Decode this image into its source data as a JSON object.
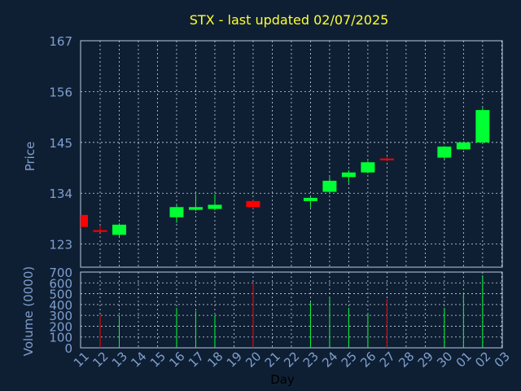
{
  "chart_data": [
    {
      "type": "candlestick",
      "title": "STX - last updated 02/07/2025",
      "ylabel": "Price",
      "ylim": [
        118,
        167
      ],
      "yticks": [
        123,
        134,
        145,
        156,
        167
      ],
      "grid": true,
      "colors": {
        "up": "#00ff33",
        "down": "#ff0000",
        "title": "#ffff33",
        "axis_text": "#7f9fcf"
      },
      "x_labels": [
        "11",
        "12",
        "13",
        "14",
        "15",
        "16",
        "17",
        "18",
        "19",
        "20",
        "21",
        "22",
        "23",
        "24",
        "25",
        "26",
        "27",
        "28",
        "29",
        "30",
        "01",
        "02",
        "03"
      ],
      "candles": [
        {
          "day": "11",
          "open": 129.3,
          "high": 129.3,
          "low": 126.4,
          "close": 126.7
        },
        {
          "day": "12",
          "open": 126.0,
          "high": 127.0,
          "low": 125.5,
          "close": 125.7
        },
        {
          "day": "13",
          "open": 125.0,
          "high": 127.5,
          "low": 124.7,
          "close": 127.2
        },
        {
          "day": "16",
          "open": 128.8,
          "high": 131.5,
          "low": 127.6,
          "close": 131.0
        },
        {
          "day": "17",
          "open": 130.4,
          "high": 133.8,
          "low": 130.2,
          "close": 131.0
        },
        {
          "day": "18",
          "open": 130.6,
          "high": 133.8,
          "low": 130.3,
          "close": 131.5
        },
        {
          "day": "20",
          "open": 132.3,
          "high": 132.5,
          "low": 130.7,
          "close": 131.0
        },
        {
          "day": "23",
          "open": 132.3,
          "high": 133.2,
          "low": 130.9,
          "close": 133.0
        },
        {
          "day": "24",
          "open": 134.3,
          "high": 137.5,
          "low": 134.0,
          "close": 136.7
        },
        {
          "day": "25",
          "open": 137.5,
          "high": 139.0,
          "low": 136.2,
          "close": 138.5
        },
        {
          "day": "26",
          "open": 138.5,
          "high": 141.0,
          "low": 138.3,
          "close": 140.7
        },
        {
          "day": "27",
          "open": 141.5,
          "high": 141.9,
          "low": 140.9,
          "close": 141.3
        },
        {
          "day": "30",
          "open": 141.7,
          "high": 144.2,
          "low": 141.2,
          "close": 144.1
        },
        {
          "day": "01",
          "open": 143.5,
          "high": 145.2,
          "low": 143.4,
          "close": 145.0
        },
        {
          "day": "02",
          "open": 145.0,
          "high": 152.5,
          "low": 144.8,
          "close": 152.0
        }
      ]
    },
    {
      "type": "bar",
      "ylabel": "Volume (0000)",
      "xlabel": "Day",
      "ylim": [
        0,
        700
      ],
      "yticks": [
        0,
        100,
        200,
        300,
        400,
        500,
        600,
        700
      ],
      "grid": true,
      "categories": [
        "11",
        "12",
        "13",
        "14",
        "15",
        "16",
        "17",
        "18",
        "19",
        "20",
        "21",
        "22",
        "23",
        "24",
        "25",
        "26",
        "27",
        "28",
        "29",
        "30",
        "01",
        "02",
        "03"
      ],
      "bars": [
        {
          "day": "12",
          "value": 300,
          "direction": "down"
        },
        {
          "day": "13",
          "value": 300,
          "direction": "up"
        },
        {
          "day": "16",
          "value": 370,
          "direction": "up"
        },
        {
          "day": "17",
          "value": 340,
          "direction": "up"
        },
        {
          "day": "18",
          "value": 300,
          "direction": "up"
        },
        {
          "day": "20",
          "value": 600,
          "direction": "down"
        },
        {
          "day": "23",
          "value": 420,
          "direction": "up"
        },
        {
          "day": "24",
          "value": 460,
          "direction": "up"
        },
        {
          "day": "25",
          "value": 370,
          "direction": "up"
        },
        {
          "day": "26",
          "value": 320,
          "direction": "up"
        },
        {
          "day": "27",
          "value": 450,
          "direction": "down"
        },
        {
          "day": "30",
          "value": 370,
          "direction": "up"
        },
        {
          "day": "01",
          "value": 500,
          "direction": "up"
        },
        {
          "day": "02",
          "value": 670,
          "direction": "up"
        }
      ]
    }
  ]
}
